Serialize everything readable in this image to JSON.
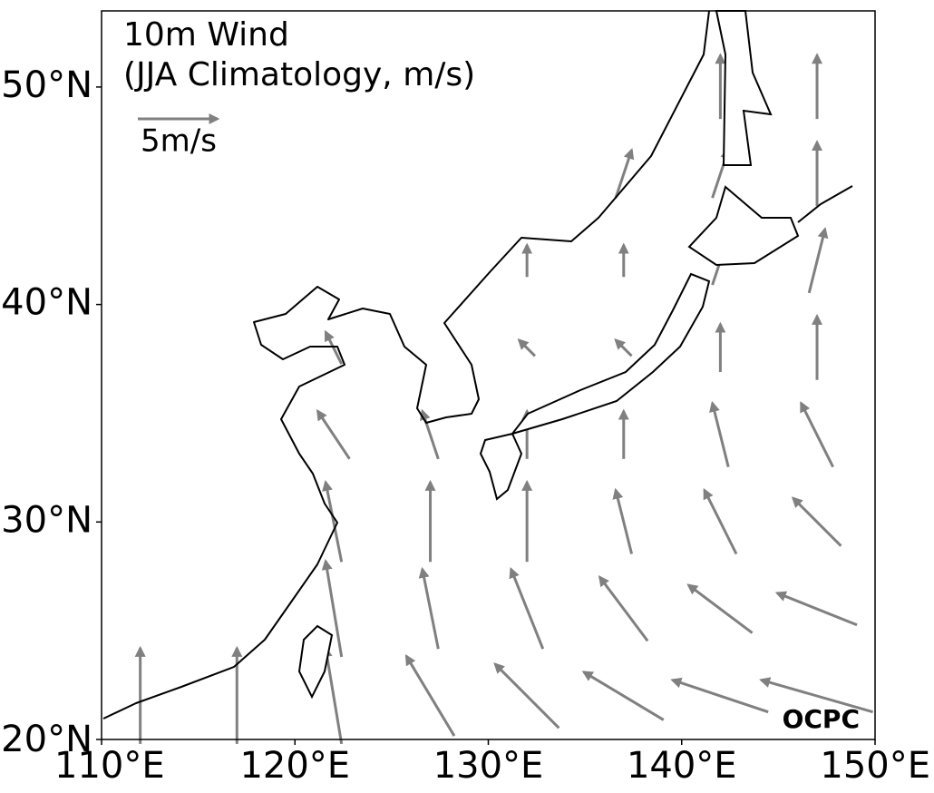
{
  "map": {
    "title_lines": [
      "10m Wind",
      "(JJA Climatology, m/s)"
    ],
    "reference": {
      "value": 5,
      "label": "5m/s"
    },
    "watermark": "OCPC",
    "xlim": [
      110,
      150
    ],
    "ylim": [
      20,
      53.5
    ],
    "xticks": [
      {
        "value": 110,
        "label": "110°E"
      },
      {
        "value": 120,
        "label": "120°E"
      },
      {
        "value": 130,
        "label": "130°E"
      },
      {
        "value": 140,
        "label": "140°E"
      },
      {
        "value": 150,
        "label": "150°E"
      }
    ],
    "yticks": [
      {
        "value": 20,
        "label": "20°N"
      },
      {
        "value": 30,
        "label": "30°N"
      },
      {
        "value": 40,
        "label": "40°N"
      },
      {
        "value": 50,
        "label": "50°N"
      }
    ],
    "vectors": {
      "lons": [
        112,
        117,
        122,
        127,
        132,
        137,
        142,
        147
      ],
      "lats": [
        22,
        26,
        30,
        34,
        38,
        42,
        46,
        50
      ],
      "u": [
        [
          0,
          0,
          -1,
          -3,
          -4,
          -5,
          -6,
          -7
        ],
        [
          null,
          null,
          -1,
          -1,
          -2,
          -3,
          -4,
          -5
        ],
        [
          null,
          null,
          -1,
          0,
          0,
          -1,
          -2,
          -3
        ],
        [
          null,
          null,
          -2,
          -1,
          0,
          0,
          -1,
          -2
        ],
        [
          null,
          null,
          -1,
          null,
          -1,
          -1,
          0,
          0
        ],
        [
          null,
          null,
          null,
          null,
          0,
          0,
          1,
          1
        ],
        [
          null,
          null,
          null,
          null,
          null,
          1,
          1,
          0
        ],
        [
          null,
          null,
          null,
          null,
          null,
          null,
          0,
          0
        ]
      ],
      "v": [
        [
          6,
          6,
          6,
          5,
          4,
          3,
          2,
          2
        ],
        [
          null,
          null,
          6,
          5,
          5,
          4,
          3,
          2
        ],
        [
          null,
          null,
          5,
          5,
          5,
          4,
          4,
          3
        ],
        [
          null,
          null,
          3,
          3,
          3,
          3,
          4,
          4
        ],
        [
          null,
          null,
          2,
          null,
          1,
          1,
          3,
          4
        ],
        [
          null,
          null,
          null,
          null,
          2,
          2,
          3,
          4
        ],
        [
          null,
          null,
          null,
          null,
          null,
          3,
          3,
          4
        ],
        [
          null,
          null,
          null,
          null,
          null,
          null,
          4,
          4
        ]
      ]
    }
  }
}
